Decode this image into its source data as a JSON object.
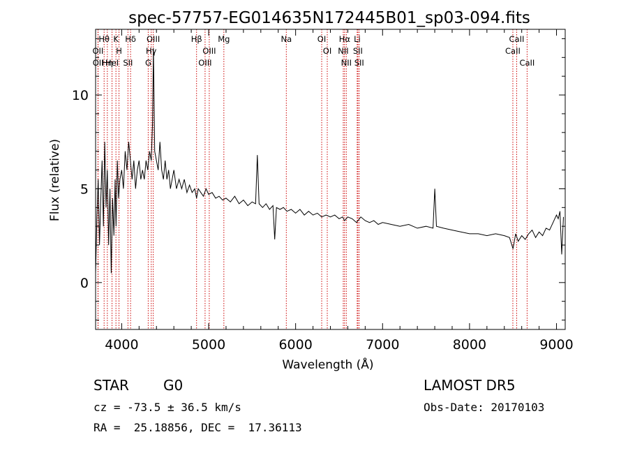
{
  "chart_data": {
    "type": "line",
    "title": "spec-57757-EG014635N172445B01_sp03-094.fits",
    "xlabel": "Wavelength (Å)",
    "ylabel": "Flux (relative)",
    "xlim": [
      3700,
      9100
    ],
    "ylim": [
      -2.5,
      13.5
    ],
    "xticks": [
      4000,
      5000,
      6000,
      7000,
      8000,
      9000
    ],
    "yticks": [
      0,
      5,
      10
    ],
    "grid": false,
    "spectral_lines": [
      {
        "label": "Hθ",
        "wavelength": 3798
      },
      {
        "label": "OII",
        "wavelength": 3727
      },
      {
        "label": "OII",
        "wavelength": 3729
      },
      {
        "label": "Hη",
        "wavelength": 3835
      },
      {
        "label": "HeI",
        "wavelength": 3889
      },
      {
        "label": "K",
        "wavelength": 3934
      },
      {
        "label": "H",
        "wavelength": 3969
      },
      {
        "label": "Hδ",
        "wavelength": 4102
      },
      {
        "label": "SII",
        "wavelength": 4072
      },
      {
        "label": "OIII",
        "wavelength": 4363
      },
      {
        "label": "Hγ",
        "wavelength": 4340
      },
      {
        "label": "G",
        "wavelength": 4305
      },
      {
        "label": "Hβ",
        "wavelength": 4861
      },
      {
        "label": "OIII",
        "wavelength": 5007
      },
      {
        "label": "OIII",
        "wavelength": 4959
      },
      {
        "label": "Mg",
        "wavelength": 5175
      },
      {
        "label": "Na",
        "wavelength": 5893
      },
      {
        "label": "OI",
        "wavelength": 6300
      },
      {
        "label": "OI",
        "wavelength": 6364
      },
      {
        "label": "Hα",
        "wavelength": 6563
      },
      {
        "label": "NII",
        "wavelength": 6548
      },
      {
        "label": "NII",
        "wavelength": 6583
      },
      {
        "label": "SII",
        "wavelength": 6716
      },
      {
        "label": "Li",
        "wavelength": 6708
      },
      {
        "label": "SII",
        "wavelength": 6731
      },
      {
        "label": "CaII",
        "wavelength": 8542
      },
      {
        "label": "CaII",
        "wavelength": 8498
      },
      {
        "label": "CaII",
        "wavelength": 8662
      }
    ],
    "series": [
      {
        "color": "#000000",
        "x": [
          3700,
          3715,
          3730,
          3745,
          3760,
          3775,
          3790,
          3805,
          3820,
          3835,
          3850,
          3865,
          3880,
          3895,
          3910,
          3925,
          3935,
          3950,
          3965,
          3980,
          4000,
          4020,
          4040,
          4060,
          4080,
          4100,
          4120,
          4140,
          4160,
          4180,
          4200,
          4220,
          4240,
          4260,
          4280,
          4300,
          4320,
          4340,
          4355,
          4365,
          4380,
          4400,
          4420,
          4440,
          4460,
          4480,
          4500,
          4520,
          4540,
          4560,
          4580,
          4600,
          4630,
          4660,
          4690,
          4720,
          4750,
          4780,
          4810,
          4840,
          4861,
          4880,
          4910,
          4940,
          4970,
          5000,
          5040,
          5080,
          5120,
          5160,
          5200,
          5250,
          5300,
          5350,
          5400,
          5450,
          5500,
          5540,
          5560,
          5580,
          5620,
          5660,
          5700,
          5740,
          5760,
          5780,
          5820,
          5860,
          5900,
          5950,
          6000,
          6050,
          6100,
          6150,
          6200,
          6250,
          6300,
          6350,
          6400,
          6450,
          6500,
          6540,
          6563,
          6600,
          6650,
          6700,
          6750,
          6800,
          6850,
          6900,
          6950,
          7000,
          7100,
          7200,
          7300,
          7400,
          7500,
          7580,
          7600,
          7620,
          7700,
          7800,
          7900,
          8000,
          8100,
          8200,
          8300,
          8400,
          8460,
          8500,
          8530,
          8560,
          8600,
          8640,
          8680,
          8720,
          8760,
          8800,
          8840,
          8880,
          8920,
          8960,
          9000,
          9020,
          9040,
          9060,
          9080
        ],
        "y": [
          0.5,
          3.5,
          5.5,
          2.0,
          4.5,
          6.5,
          3.0,
          7.5,
          4.0,
          6.0,
          2.0,
          5.0,
          0.5,
          4.5,
          2.5,
          5.5,
          3.0,
          6.5,
          4.5,
          5.5,
          6.0,
          5.0,
          7.0,
          6.0,
          7.5,
          6.5,
          5.5,
          6.5,
          5.0,
          6.0,
          6.5,
          5.5,
          6.0,
          5.5,
          6.5,
          6.0,
          7.0,
          6.5,
          8.5,
          12.5,
          7.0,
          6.5,
          6.0,
          7.5,
          6.0,
          5.5,
          6.5,
          5.5,
          6.0,
          5.0,
          5.5,
          6.0,
          5.0,
          5.5,
          5.0,
          5.5,
          4.8,
          5.2,
          4.8,
          5.0,
          4.5,
          5.0,
          4.8,
          4.6,
          5.0,
          4.7,
          4.8,
          4.5,
          4.6,
          4.4,
          4.5,
          4.3,
          4.6,
          4.2,
          4.4,
          4.1,
          4.3,
          4.2,
          6.8,
          4.2,
          4.0,
          4.2,
          3.9,
          4.1,
          2.3,
          4.0,
          3.9,
          4.0,
          3.8,
          3.9,
          3.7,
          3.9,
          3.6,
          3.8,
          3.6,
          3.7,
          3.5,
          3.6,
          3.5,
          3.6,
          3.4,
          3.5,
          3.3,
          3.5,
          3.4,
          3.2,
          3.5,
          3.3,
          3.2,
          3.3,
          3.1,
          3.2,
          3.1,
          3.0,
          3.1,
          2.9,
          3.0,
          2.9,
          5.0,
          3.0,
          2.9,
          2.8,
          2.7,
          2.6,
          2.6,
          2.5,
          2.6,
          2.5,
          2.4,
          1.8,
          2.6,
          2.2,
          2.5,
          2.3,
          2.6,
          2.8,
          2.4,
          2.7,
          2.5,
          2.9,
          2.8,
          3.2,
          3.6,
          3.4,
          3.8,
          1.5,
          3.5
        ]
      }
    ]
  },
  "info": {
    "object_class": "STAR",
    "subclass": "G0",
    "survey": "LAMOST DR5",
    "cz": "cz = -73.5 ± 36.5 km/s",
    "obs_date": "Obs-Date: 20170103",
    "coords": "RA =  25.18856, DEC =  17.36113"
  }
}
